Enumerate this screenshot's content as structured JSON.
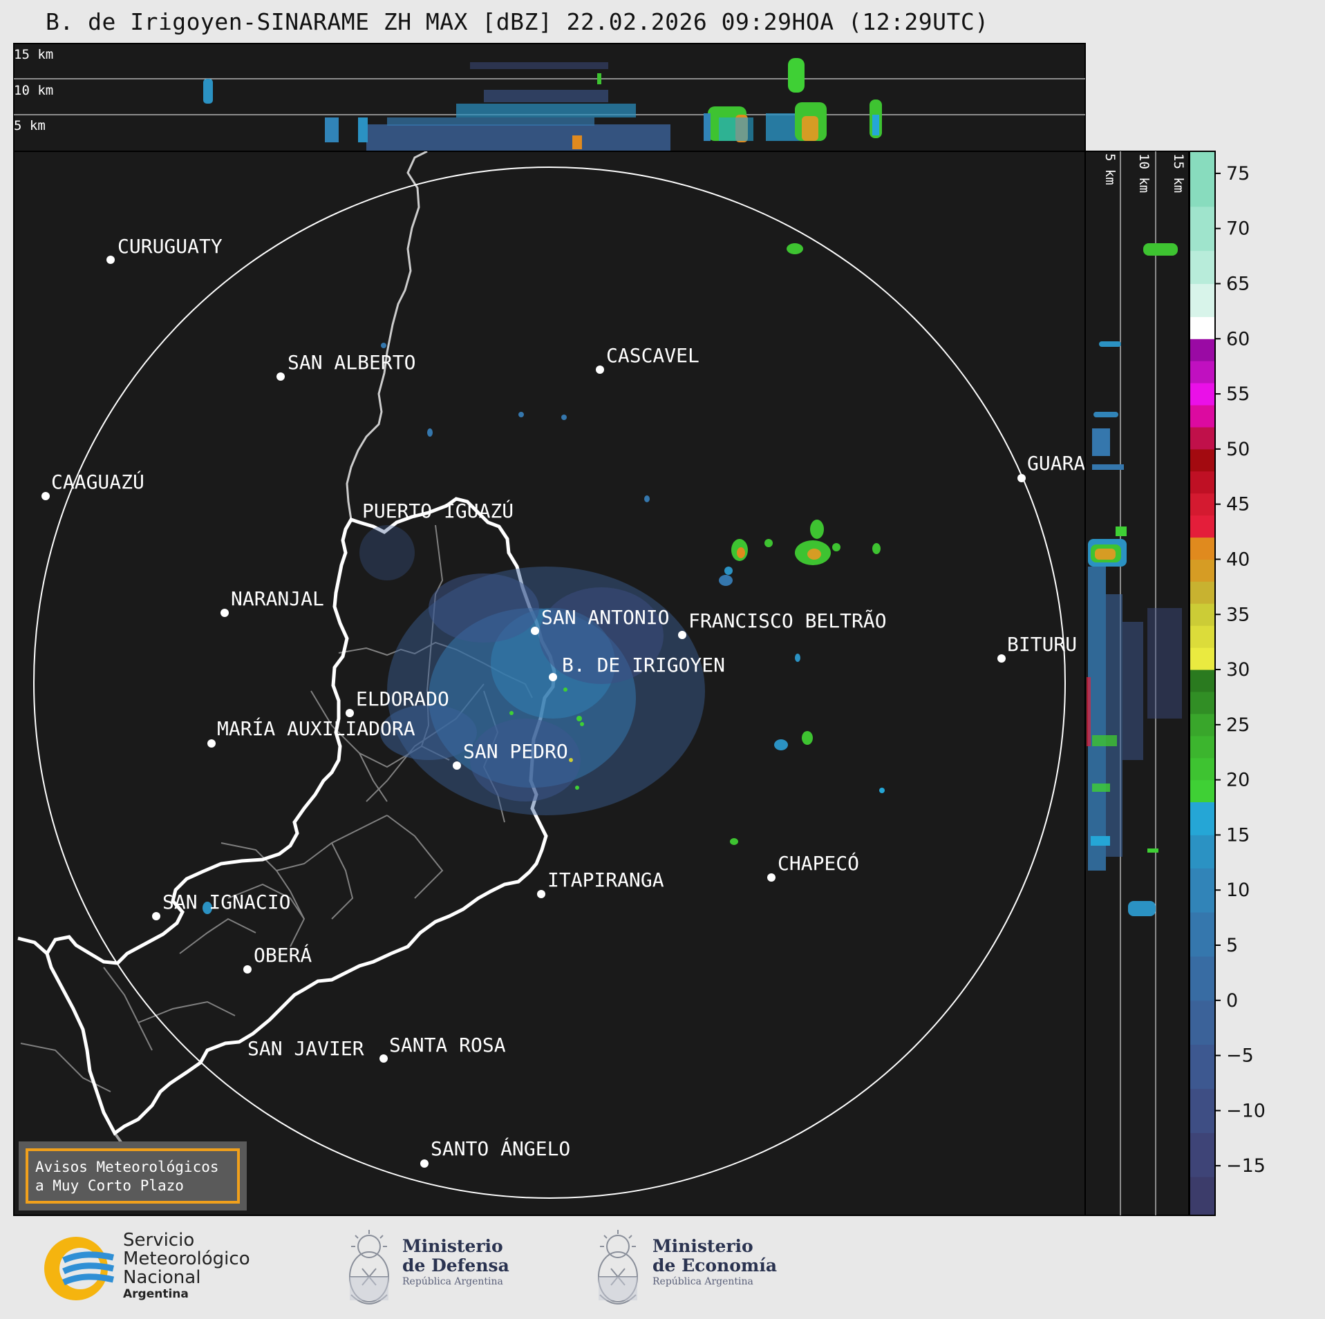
{
  "title": "B. de Irigoyen-SINARAME ZH MAX [dBZ] 22.02.2026 09:29HOA (12:29UTC)",
  "top_profile_labels": [
    "15 km",
    "10 km",
    "5 km"
  ],
  "side_profile_labels": [
    "5 km",
    "10 km",
    "15 km"
  ],
  "cities": [
    {
      "name": "CURUGUATY"
    },
    {
      "name": "SAN ALBERTO"
    },
    {
      "name": "CASCAVEL"
    },
    {
      "name": "CAAGUAZÚ"
    },
    {
      "name": "GUARA"
    },
    {
      "name": "PUERTO IGUAZÚ"
    },
    {
      "name": "NARANJAL"
    },
    {
      "name": "SAN ANTONIO"
    },
    {
      "name": "FRANCISCO BELTRÃO"
    },
    {
      "name": "BITURU"
    },
    {
      "name": "B. DE IRIGOYEN"
    },
    {
      "name": "ELDORADO"
    },
    {
      "name": "MARÍA AUXILIADORA"
    },
    {
      "name": "SAN PEDRO"
    },
    {
      "name": "CHAPECÓ"
    },
    {
      "name": "ITAPIRANGA"
    },
    {
      "name": "SAN IGNACIO"
    },
    {
      "name": "OBERÁ"
    },
    {
      "name": "SAN JAVIER"
    },
    {
      "name": "SANTA ROSA"
    },
    {
      "name": "SANTO ÁNGELO"
    }
  ],
  "colorbar": {
    "ticks": [
      "75",
      "70",
      "65",
      "60",
      "55",
      "50",
      "45",
      "40",
      "35",
      "30",
      "25",
      "20",
      "15",
      "10",
      "5",
      "0",
      "−5",
      "−10",
      "−15"
    ],
    "scale": {
      "min": -19.5,
      "max": 77
    },
    "bands": [
      {
        "from": -19.5,
        "to": -16,
        "color": "#3c3c6a"
      },
      {
        "from": -16,
        "to": -12,
        "color": "#3e4477"
      },
      {
        "from": -12,
        "to": -8,
        "color": "#3e4e84"
      },
      {
        "from": -8,
        "to": -4,
        "color": "#3d5890"
      },
      {
        "from": -4,
        "to": 0,
        "color": "#3b6299"
      },
      {
        "from": 0,
        "to": 4,
        "color": "#386ca3"
      },
      {
        "from": 4,
        "to": 8,
        "color": "#3577ad"
      },
      {
        "from": 8,
        "to": 12,
        "color": "#3184b8"
      },
      {
        "from": 12,
        "to": 15,
        "color": "#2b92c3"
      },
      {
        "from": 15,
        "to": 18,
        "color": "#25a6d6"
      },
      {
        "from": 18,
        "to": 20,
        "color": "#3fd035"
      },
      {
        "from": 20,
        "to": 22,
        "color": "#3ec331"
      },
      {
        "from": 22,
        "to": 24,
        "color": "#3cb52e"
      },
      {
        "from": 24,
        "to": 26,
        "color": "#39a62b"
      },
      {
        "from": 26,
        "to": 28,
        "color": "#318e25"
      },
      {
        "from": 28,
        "to": 30,
        "color": "#2a7a1f"
      },
      {
        "from": 30,
        "to": 32,
        "color": "#eaea40"
      },
      {
        "from": 32,
        "to": 34,
        "color": "#dcdc3a"
      },
      {
        "from": 34,
        "to": 36,
        "color": "#cccc36"
      },
      {
        "from": 36,
        "to": 38,
        "color": "#c8b230"
      },
      {
        "from": 38,
        "to": 40,
        "color": "#d69c24"
      },
      {
        "from": 40,
        "to": 42,
        "color": "#e08a1e"
      },
      {
        "from": 42,
        "to": 44,
        "color": "#e41e3a"
      },
      {
        "from": 44,
        "to": 46,
        "color": "#d41a30"
      },
      {
        "from": 46,
        "to": 48,
        "color": "#bf1024"
      },
      {
        "from": 48,
        "to": 50,
        "color": "#a30a10"
      },
      {
        "from": 50,
        "to": 52,
        "color": "#c0104a"
      },
      {
        "from": 52,
        "to": 54,
        "color": "#dc0aa0"
      },
      {
        "from": 54,
        "to": 56,
        "color": "#ea10e8"
      },
      {
        "from": 56,
        "to": 58,
        "color": "#c010c0"
      },
      {
        "from": 58,
        "to": 60,
        "color": "#9a0aa4"
      },
      {
        "from": 60,
        "to": 62,
        "color": "#ffffff"
      },
      {
        "from": 62,
        "to": 65,
        "color": "#d8f4ea"
      },
      {
        "from": 65,
        "to": 68,
        "color": "#b8ecda"
      },
      {
        "from": 68,
        "to": 72,
        "color": "#9fe4cc"
      },
      {
        "from": 72,
        "to": 77,
        "color": "#88dcbe"
      }
    ]
  },
  "alert_box": {
    "line1": "Avisos Meteorológicos",
    "line2": "a Muy Corto Plazo",
    "accent": "#f0a01c"
  },
  "footer": {
    "smn": {
      "line1": "Servicio",
      "line2": "Meteorológico",
      "line3": "Nacional",
      "line4": "Argentina"
    },
    "defensa": {
      "line1": "Ministerio",
      "line2": "de Defensa",
      "line3": "República Argentina"
    },
    "economia": {
      "line1": "Ministerio",
      "line2": "de Economía",
      "line3": "República Argentina"
    }
  },
  "colors": {
    "map_bg": "#1a1a1a",
    "page_bg": "#e8e8e8",
    "province_border": "#ffffff",
    "river": "#cccccc",
    "dept_border": "#808080"
  }
}
